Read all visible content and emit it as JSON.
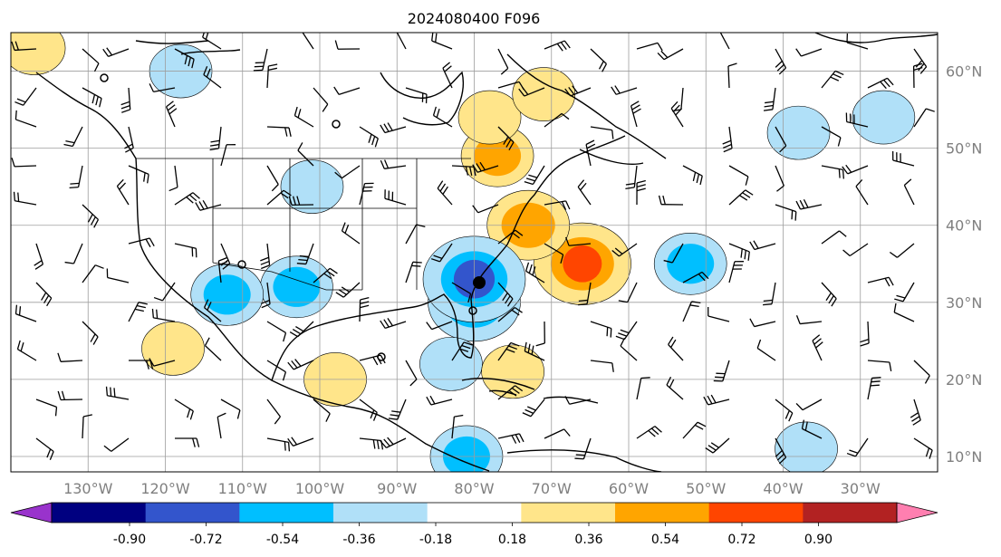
{
  "title": "2024080400 F096",
  "map": {
    "lon_min": -140,
    "lon_max": -20,
    "lat_min": 8,
    "lat_max": 65,
    "lon_ticks": [
      {
        "lon": -130,
        "label": "130°W"
      },
      {
        "lon": -120,
        "label": "120°W"
      },
      {
        "lon": -110,
        "label": "110°W"
      },
      {
        "lon": -100,
        "label": "100°W"
      },
      {
        "lon": -90,
        "label": "90°W"
      },
      {
        "lon": -80,
        "label": "80°W"
      },
      {
        "lon": -70,
        "label": "70°W"
      },
      {
        "lon": -60,
        "label": "60°W"
      },
      {
        "lon": -50,
        "label": "50°W"
      },
      {
        "lon": -40,
        "label": "40°W"
      },
      {
        "lon": -30,
        "label": "30°W"
      }
    ],
    "lat_ticks": [
      {
        "lat": 10,
        "label": "10°N"
      },
      {
        "lat": 20,
        "label": "20°N"
      },
      {
        "lat": 30,
        "label": "30°N"
      },
      {
        "lat": 40,
        "label": "40°N"
      },
      {
        "lat": 50,
        "label": "50°N"
      },
      {
        "lat": 60,
        "label": "60°N"
      }
    ],
    "gridline_color": "#9e9e9e",
    "land_outline_color": "#000000"
  },
  "colorbar": {
    "bounds": [
      "-0.90",
      "-0.72",
      "-0.54",
      "-0.36",
      "-0.18",
      "0.18",
      "0.36",
      "0.54",
      "0.72",
      "0.90"
    ],
    "colors": [
      "#9933cc",
      "#000080",
      "#3355cc",
      "#00bfff",
      "#b0e0f8",
      "#ffffff",
      "#ffe58a",
      "#ffa500",
      "#ff4500",
      "#b22222",
      "#ff7fb0"
    ],
    "extend": "both"
  },
  "chart_data": {
    "type": "heatmap",
    "title": "2024080400 F096",
    "xlabel": "",
    "ylabel": "",
    "x_range": [
      -140,
      -20
    ],
    "y_range": [
      8,
      65
    ],
    "anomaly_features": [
      {
        "lon": -66,
        "lat": 35,
        "value": 0.65
      },
      {
        "lon": -73,
        "lat": 40,
        "value": 0.5
      },
      {
        "lon": -77,
        "lat": 49,
        "value": 0.4
      },
      {
        "lon": -78,
        "lat": 54,
        "value": 0.3
      },
      {
        "lon": -71,
        "lat": 57,
        "value": 0.3
      },
      {
        "lon": -80,
        "lat": 30,
        "value": -0.6
      },
      {
        "lon": -80,
        "lat": 33,
        "value": -0.7
      },
      {
        "lon": -83,
        "lat": 22,
        "value": -0.3
      },
      {
        "lon": -52,
        "lat": 35,
        "value": -0.4
      },
      {
        "lon": -103,
        "lat": 32,
        "value": -0.4
      },
      {
        "lon": -112,
        "lat": 31,
        "value": -0.4
      },
      {
        "lon": -101,
        "lat": 45,
        "value": -0.3
      },
      {
        "lon": -118,
        "lat": 60,
        "value": -0.3
      },
      {
        "lon": -38,
        "lat": 52,
        "value": -0.3
      },
      {
        "lon": -27,
        "lat": 54,
        "value": -0.3
      },
      {
        "lon": -37,
        "lat": 11,
        "value": -0.3
      },
      {
        "lon": -81,
        "lat": 10,
        "value": -0.4
      },
      {
        "lon": -137,
        "lat": 63,
        "value": 0.3
      },
      {
        "lon": -119,
        "lat": 24,
        "value": 0.3
      },
      {
        "lon": -98,
        "lat": 20,
        "value": 0.3
      },
      {
        "lon": -75,
        "lat": 21,
        "value": 0.3
      }
    ]
  }
}
